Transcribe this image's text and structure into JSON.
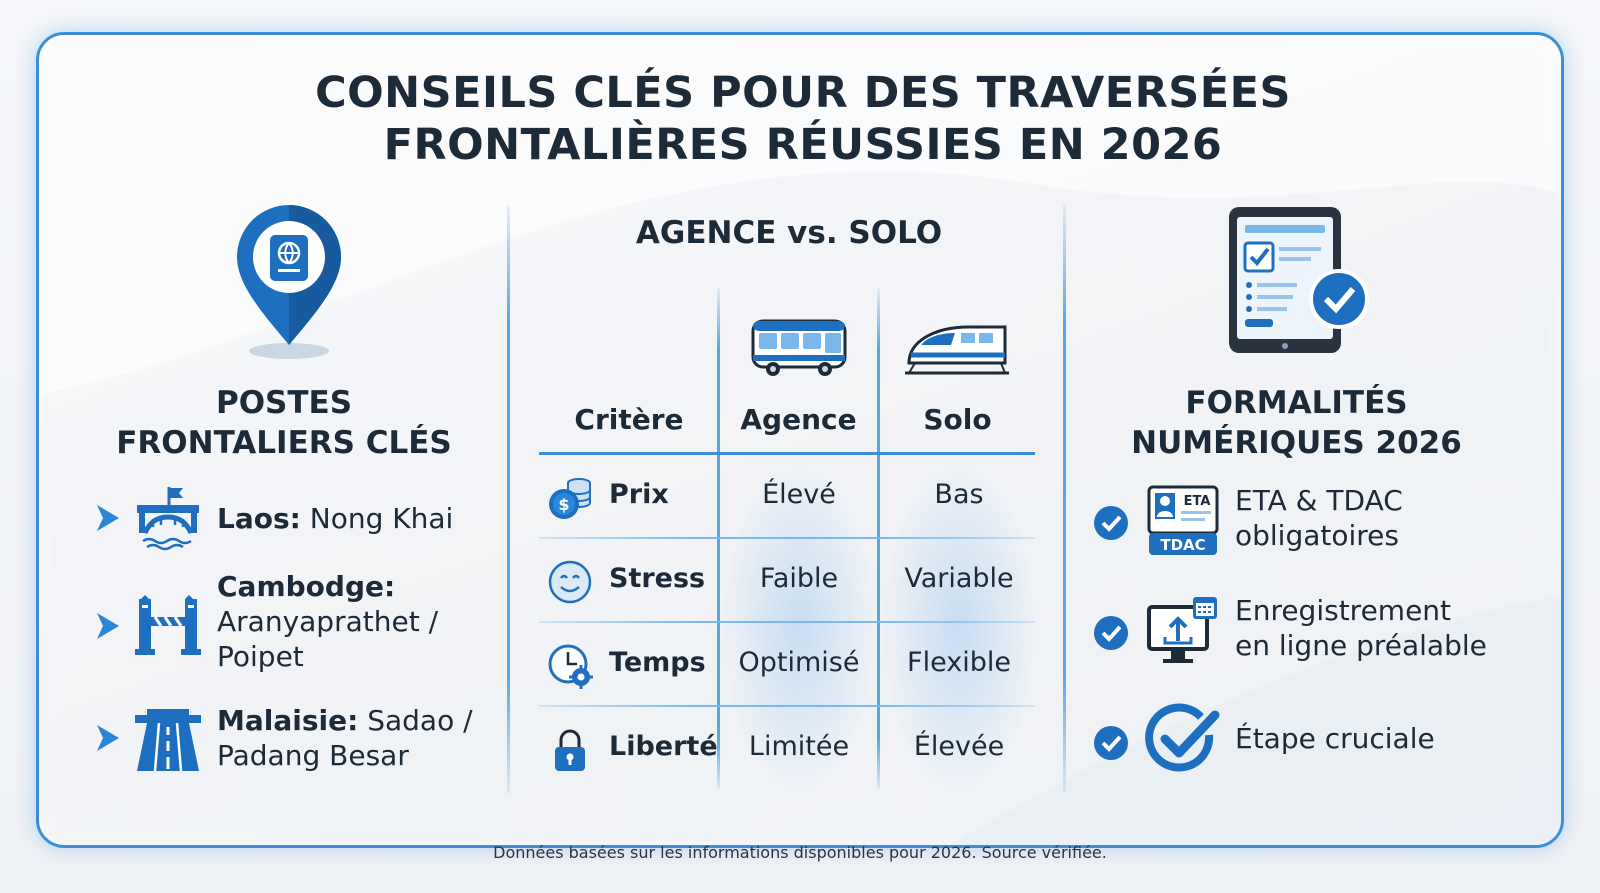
{
  "title": {
    "line1": "CONSEILS CLÉS POUR DES TRAVERSÉES",
    "line2": "FRONTALIÈRES RÉUSSIES EN 2026"
  },
  "left": {
    "title_line1": "POSTES",
    "title_line2": "FRONTALIERS CLÉS",
    "items": [
      {
        "country": "Laos:",
        "place": " Nong Khai",
        "icon": "bridge-icon"
      },
      {
        "country": "Cambodge:",
        "place": "Aranyaprathet / Poipet",
        "icon": "border-gate-icon"
      },
      {
        "country": "Malaisie:",
        "place": " Sadao / Padang Besar",
        "icon": "highway-icon"
      }
    ]
  },
  "middle": {
    "title": "AGENCE vs. SOLO",
    "headers": {
      "criterion": "Critère",
      "agency": "Agence",
      "solo": "Solo"
    },
    "rows": [
      {
        "label": "Prix",
        "agency": "Élevé",
        "solo": "Bas",
        "icon": "coins-icon"
      },
      {
        "label": "Stress",
        "agency": "Faible",
        "solo": "Variable",
        "icon": "smiley-icon"
      },
      {
        "label": "Temps",
        "agency": "Optimisé",
        "solo": "Flexible",
        "icon": "clock-gear-icon"
      },
      {
        "label": "Liberté",
        "agency": "Limitée",
        "solo": "Élevée",
        "icon": "padlock-icon"
      }
    ]
  },
  "right": {
    "title_line1": "FORMALITÉS",
    "title_line2": "NUMÉRIQUES 2026",
    "items": [
      {
        "line1": "ETA & TDAC",
        "line2": "obligatoires",
        "icon": "eta-tdac-card-icon"
      },
      {
        "line1": "Enregistrement",
        "line2": "en ligne préalable",
        "icon": "online-upload-icon"
      },
      {
        "line1": "Étape cruciale",
        "line2": "",
        "icon": "big-check-icon"
      }
    ],
    "eta_label": "ETA",
    "tdac_label": "TDAC"
  },
  "footer": "Données basées sur les informations disponibles pour 2026. Source vérifiée.",
  "colors": {
    "accent": "#1f6fc0",
    "accent_light": "#3b8fd9",
    "text": "#1d2a38"
  }
}
